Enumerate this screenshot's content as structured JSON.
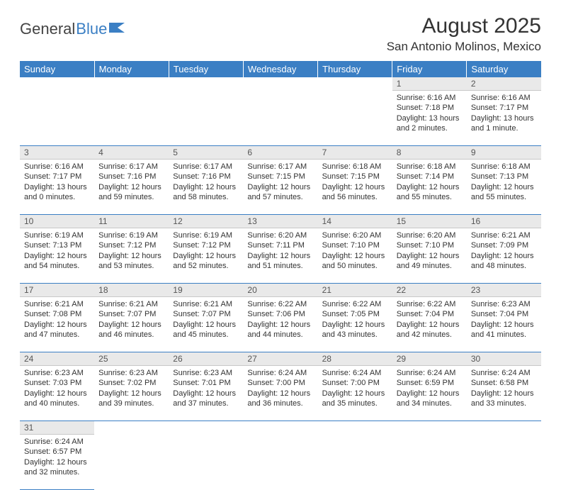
{
  "logo": {
    "text1": "General",
    "text2": "Blue"
  },
  "title": "August 2025",
  "location": "San Antonio Molinos, Mexico",
  "colors": {
    "header_bg": "#3b7fc4",
    "header_fg": "#ffffff",
    "daynum_bg": "#e9e9e9",
    "text": "#333333",
    "rule": "#3b7fc4"
  },
  "weekdays": [
    "Sunday",
    "Monday",
    "Tuesday",
    "Wednesday",
    "Thursday",
    "Friday",
    "Saturday"
  ],
  "weeks": [
    [
      null,
      null,
      null,
      null,
      null,
      {
        "n": "1",
        "sr": "6:16 AM",
        "ss": "7:18 PM",
        "dl": "13 hours and 2 minutes."
      },
      {
        "n": "2",
        "sr": "6:16 AM",
        "ss": "7:17 PM",
        "dl": "13 hours and 1 minute."
      }
    ],
    [
      {
        "n": "3",
        "sr": "6:16 AM",
        "ss": "7:17 PM",
        "dl": "13 hours and 0 minutes."
      },
      {
        "n": "4",
        "sr": "6:17 AM",
        "ss": "7:16 PM",
        "dl": "12 hours and 59 minutes."
      },
      {
        "n": "5",
        "sr": "6:17 AM",
        "ss": "7:16 PM",
        "dl": "12 hours and 58 minutes."
      },
      {
        "n": "6",
        "sr": "6:17 AM",
        "ss": "7:15 PM",
        "dl": "12 hours and 57 minutes."
      },
      {
        "n": "7",
        "sr": "6:18 AM",
        "ss": "7:15 PM",
        "dl": "12 hours and 56 minutes."
      },
      {
        "n": "8",
        "sr": "6:18 AM",
        "ss": "7:14 PM",
        "dl": "12 hours and 55 minutes."
      },
      {
        "n": "9",
        "sr": "6:18 AM",
        "ss": "7:13 PM",
        "dl": "12 hours and 55 minutes."
      }
    ],
    [
      {
        "n": "10",
        "sr": "6:19 AM",
        "ss": "7:13 PM",
        "dl": "12 hours and 54 minutes."
      },
      {
        "n": "11",
        "sr": "6:19 AM",
        "ss": "7:12 PM",
        "dl": "12 hours and 53 minutes."
      },
      {
        "n": "12",
        "sr": "6:19 AM",
        "ss": "7:12 PM",
        "dl": "12 hours and 52 minutes."
      },
      {
        "n": "13",
        "sr": "6:20 AM",
        "ss": "7:11 PM",
        "dl": "12 hours and 51 minutes."
      },
      {
        "n": "14",
        "sr": "6:20 AM",
        "ss": "7:10 PM",
        "dl": "12 hours and 50 minutes."
      },
      {
        "n": "15",
        "sr": "6:20 AM",
        "ss": "7:10 PM",
        "dl": "12 hours and 49 minutes."
      },
      {
        "n": "16",
        "sr": "6:21 AM",
        "ss": "7:09 PM",
        "dl": "12 hours and 48 minutes."
      }
    ],
    [
      {
        "n": "17",
        "sr": "6:21 AM",
        "ss": "7:08 PM",
        "dl": "12 hours and 47 minutes."
      },
      {
        "n": "18",
        "sr": "6:21 AM",
        "ss": "7:07 PM",
        "dl": "12 hours and 46 minutes."
      },
      {
        "n": "19",
        "sr": "6:21 AM",
        "ss": "7:07 PM",
        "dl": "12 hours and 45 minutes."
      },
      {
        "n": "20",
        "sr": "6:22 AM",
        "ss": "7:06 PM",
        "dl": "12 hours and 44 minutes."
      },
      {
        "n": "21",
        "sr": "6:22 AM",
        "ss": "7:05 PM",
        "dl": "12 hours and 43 minutes."
      },
      {
        "n": "22",
        "sr": "6:22 AM",
        "ss": "7:04 PM",
        "dl": "12 hours and 42 minutes."
      },
      {
        "n": "23",
        "sr": "6:23 AM",
        "ss": "7:04 PM",
        "dl": "12 hours and 41 minutes."
      }
    ],
    [
      {
        "n": "24",
        "sr": "6:23 AM",
        "ss": "7:03 PM",
        "dl": "12 hours and 40 minutes."
      },
      {
        "n": "25",
        "sr": "6:23 AM",
        "ss": "7:02 PM",
        "dl": "12 hours and 39 minutes."
      },
      {
        "n": "26",
        "sr": "6:23 AM",
        "ss": "7:01 PM",
        "dl": "12 hours and 37 minutes."
      },
      {
        "n": "27",
        "sr": "6:24 AM",
        "ss": "7:00 PM",
        "dl": "12 hours and 36 minutes."
      },
      {
        "n": "28",
        "sr": "6:24 AM",
        "ss": "7:00 PM",
        "dl": "12 hours and 35 minutes."
      },
      {
        "n": "29",
        "sr": "6:24 AM",
        "ss": "6:59 PM",
        "dl": "12 hours and 34 minutes."
      },
      {
        "n": "30",
        "sr": "6:24 AM",
        "ss": "6:58 PM",
        "dl": "12 hours and 33 minutes."
      }
    ],
    [
      {
        "n": "31",
        "sr": "6:24 AM",
        "ss": "6:57 PM",
        "dl": "12 hours and 32 minutes."
      },
      null,
      null,
      null,
      null,
      null,
      null
    ]
  ],
  "labels": {
    "sunrise": "Sunrise:",
    "sunset": "Sunset:",
    "daylight": "Daylight:"
  }
}
